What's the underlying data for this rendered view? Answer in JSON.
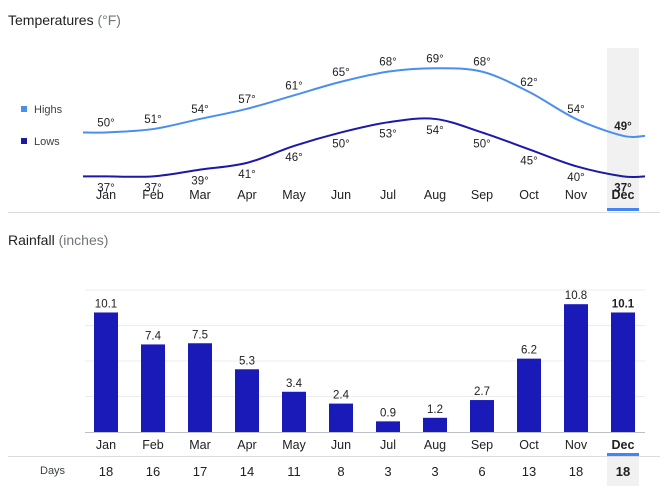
{
  "temperatures": {
    "title": "Temperatures",
    "unit": "(°F)",
    "legend": {
      "highs": "Highs",
      "lows": "Lows"
    },
    "colors": {
      "highs": "#4a8ff0",
      "lows": "#1a1aa6"
    }
  },
  "rainfall": {
    "title": "Rainfall",
    "unit": "(inches)",
    "days_label": "Days",
    "bar_color": "#1a1ab8"
  },
  "selected_month": "Dec",
  "chart_data": [
    {
      "type": "line",
      "title": "Temperatures (°F)",
      "categories": [
        "Jan",
        "Feb",
        "Mar",
        "Apr",
        "May",
        "Jun",
        "Jul",
        "Aug",
        "Sep",
        "Oct",
        "Nov",
        "Dec"
      ],
      "series": [
        {
          "name": "Highs",
          "values": [
            50,
            51,
            54,
            57,
            61,
            65,
            68,
            69,
            68,
            62,
            54,
            49
          ],
          "labels": [
            "50°",
            "51°",
            "54°",
            "57°",
            "61°",
            "65°",
            "68°",
            "69°",
            "68°",
            "62°",
            "54°",
            "49°"
          ]
        },
        {
          "name": "Lows",
          "values": [
            37,
            37,
            39,
            41,
            46,
            50,
            53,
            54,
            50,
            45,
            40,
            37
          ],
          "labels": [
            "37°",
            "37°",
            "39°",
            "41°",
            "46°",
            "50°",
            "53°",
            "54°",
            "50°",
            "45°",
            "40°",
            "37°"
          ]
        }
      ],
      "ylim": [
        30,
        75
      ],
      "legend": "left"
    },
    {
      "type": "bar",
      "title": "Rainfall (inches)",
      "categories": [
        "Jan",
        "Feb",
        "Mar",
        "Apr",
        "May",
        "Jun",
        "Jul",
        "Aug",
        "Sep",
        "Oct",
        "Nov",
        "Dec"
      ],
      "values": [
        10.1,
        7.4,
        7.5,
        5.3,
        3.4,
        2.4,
        0.9,
        1.2,
        2.7,
        6.2,
        10.8,
        10.1
      ],
      "labels": [
        "10.1",
        "7.4",
        "7.5",
        "5.3",
        "3.4",
        "2.4",
        "0.9",
        "1.2",
        "2.7",
        "6.2",
        "10.8",
        "10.1"
      ],
      "days": [
        "18",
        "16",
        "17",
        "14",
        "11",
        "8",
        "3",
        "3",
        "6",
        "13",
        "18",
        "18"
      ],
      "ylim": [
        0,
        12
      ],
      "grid": true
    }
  ]
}
